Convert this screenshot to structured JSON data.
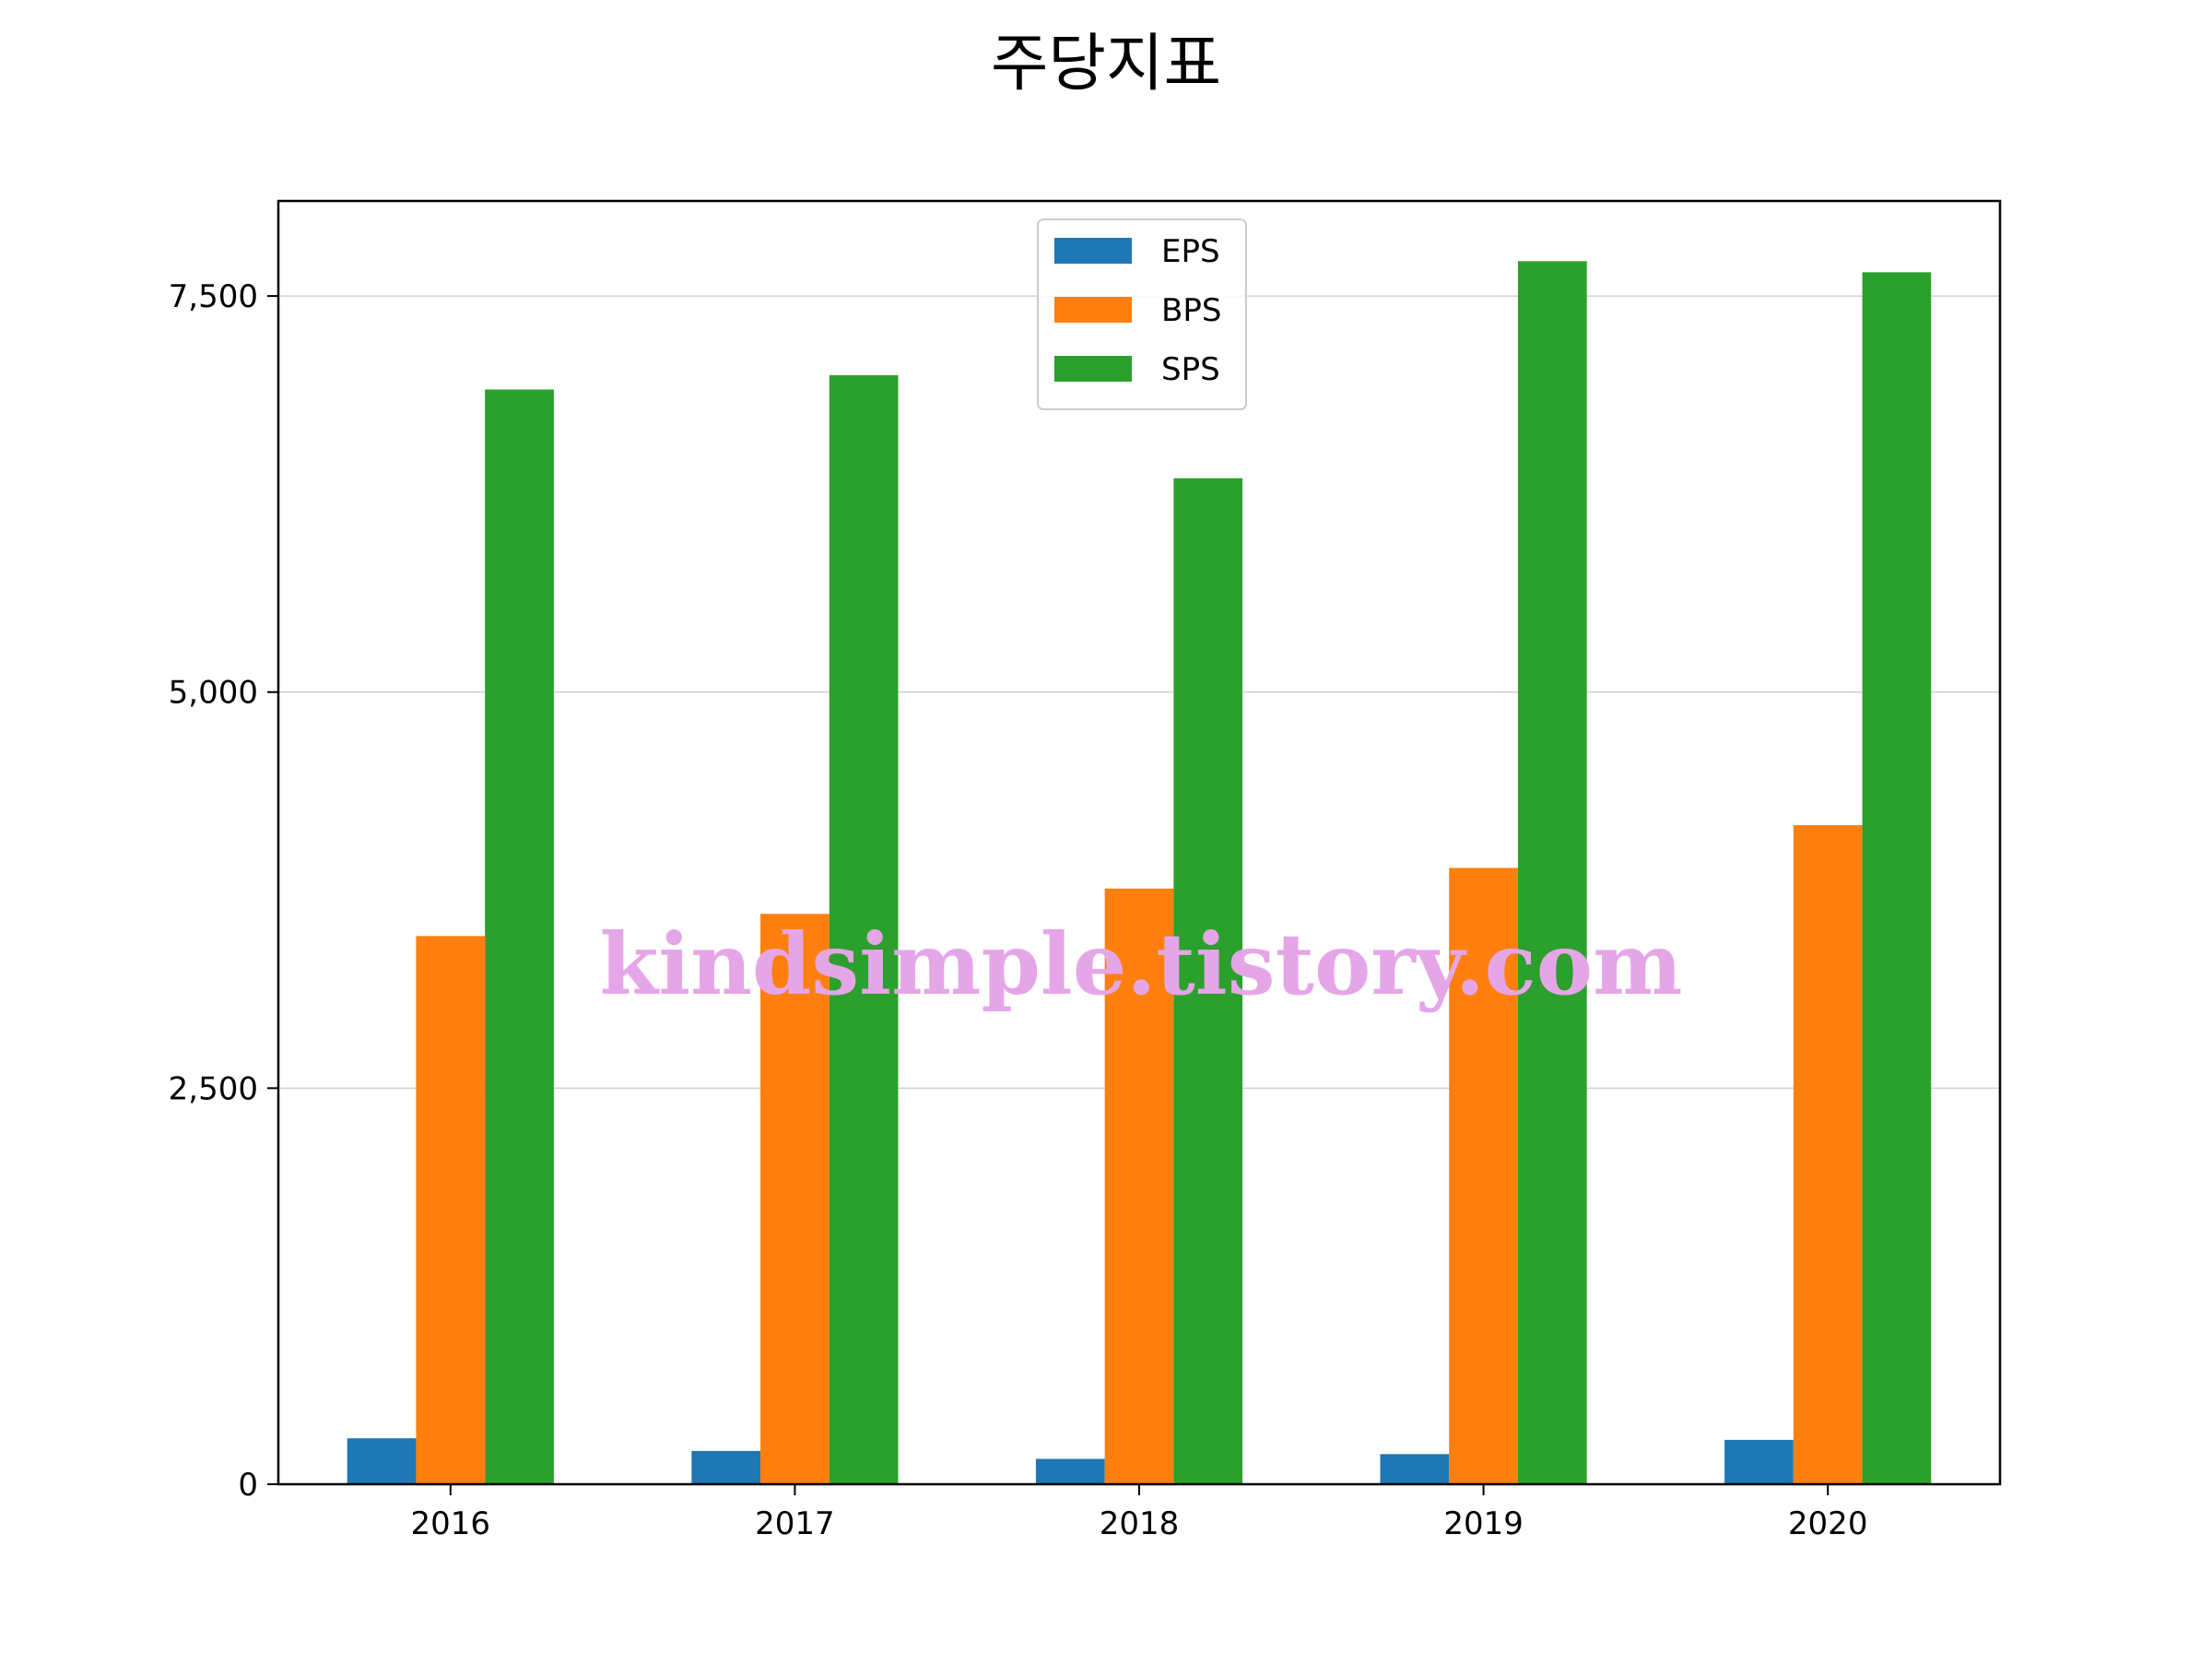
{
  "chart_data": {
    "type": "bar",
    "title": "주당지표",
    "xlabel": "",
    "ylabel": "",
    "categories": [
      "2016",
      "2017",
      "2018",
      "2019",
      "2020"
    ],
    "series": [
      {
        "name": "EPS",
        "color": "#1f77b4",
        "values": [
          290,
          210,
          160,
          190,
          280
        ]
      },
      {
        "name": "BPS",
        "color": "#ff7f0e",
        "values": [
          3460,
          3600,
          3760,
          3890,
          4160
        ]
      },
      {
        "name": "SPS",
        "color": "#2ca02c",
        "values": [
          6910,
          7000,
          6350,
          7720,
          7650
        ]
      }
    ],
    "ylim": [
      0,
      8100
    ],
    "yticks": [
      0,
      2500,
      5000,
      7500
    ],
    "ytick_labels": [
      "0",
      "2,500",
      "5,000",
      "7,500"
    ],
    "grid": "horizontal",
    "legend_position": "top-center",
    "watermark": "kindsimple.tistory.com"
  }
}
